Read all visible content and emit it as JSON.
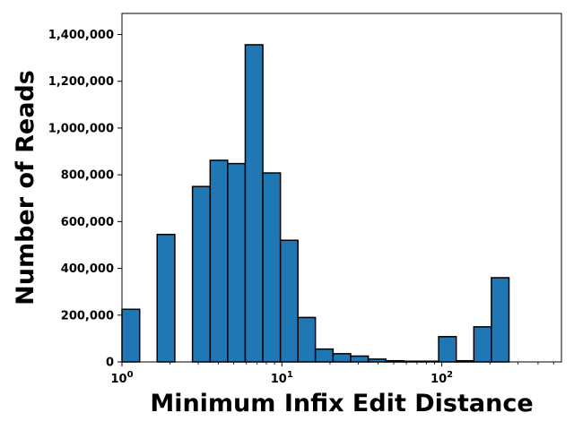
{
  "chart_data": {
    "type": "bar",
    "title": "",
    "xlabel": "Minimum Infix Edit Distance",
    "ylabel": "Number of Reads",
    "x_scale": "log",
    "xlim": [
      1,
      560
    ],
    "ylim": [
      0,
      1490000
    ],
    "grid": false,
    "bar_color": "#1f77b4",
    "edge_color": "#000000",
    "x_ticks": [
      {
        "value": 1,
        "base": "10",
        "exp": "0"
      },
      {
        "value": 10,
        "base": "10",
        "exp": "1"
      },
      {
        "value": 100,
        "base": "10",
        "exp": "2"
      }
    ],
    "y_ticks": [
      {
        "value": 0,
        "label": "0"
      },
      {
        "value": 200000,
        "label": "200,000"
      },
      {
        "value": 400000,
        "label": "400,000"
      },
      {
        "value": 600000,
        "label": "600,000"
      },
      {
        "value": 800000,
        "label": "800,000"
      },
      {
        "value": 1000000,
        "label": "1,000,000"
      },
      {
        "value": 1200000,
        "label": "1,200,000"
      },
      {
        "value": 1400000,
        "label": "1,400,000"
      }
    ],
    "bin_edges": [
      1.0,
      1.29,
      1.66,
      2.14,
      2.76,
      3.56,
      4.58,
      5.9,
      7.6,
      9.79,
      12.6,
      16.2,
      20.9,
      26.9,
      34.7,
      44.7,
      57.6,
      74.2,
      95.6,
      123.1,
      158.6,
      204.2,
      263.1,
      338.8,
      436.4,
      562.1
    ],
    "values": [
      225000,
      0,
      545000,
      0,
      750000,
      862000,
      848000,
      1356000,
      808000,
      520000,
      190000,
      55000,
      35000,
      25000,
      12000,
      5000,
      3000,
      3000,
      108000,
      5000,
      150000,
      360000,
      0,
      0,
      0
    ]
  }
}
